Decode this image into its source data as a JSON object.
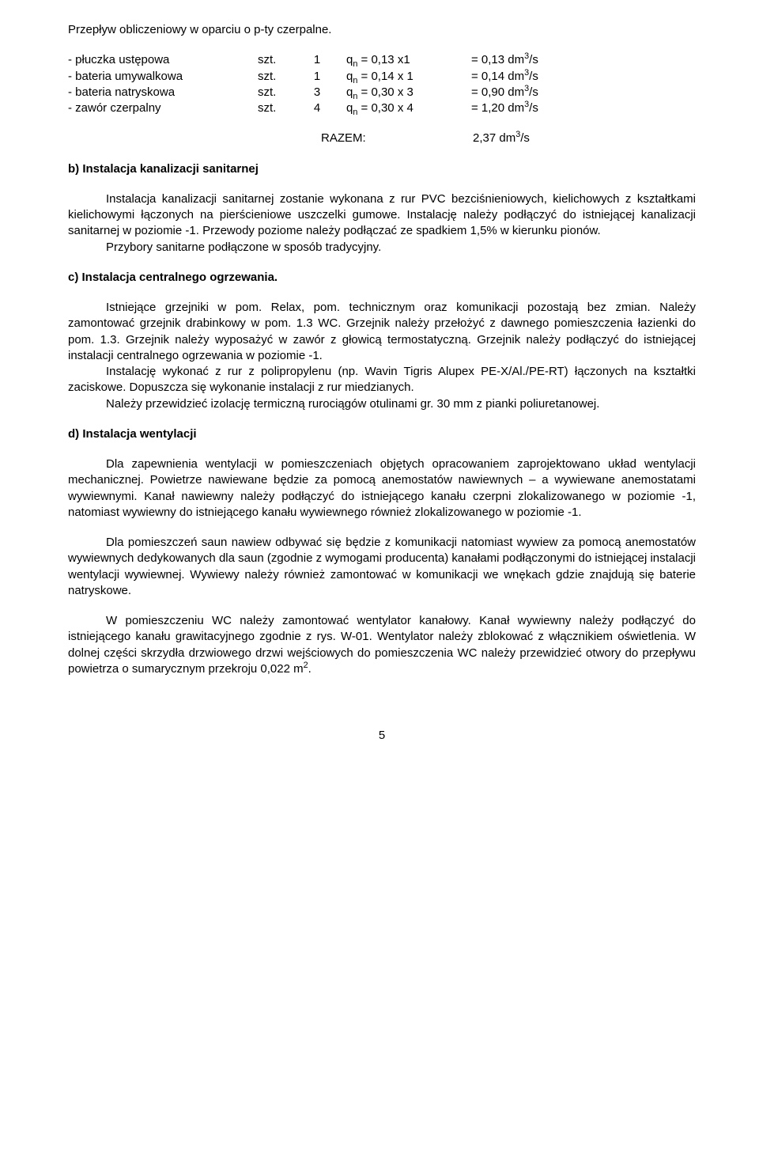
{
  "title": "Przepływ obliczeniowy w oparciu o p-ty czerpalne.",
  "flow": [
    {
      "name": "- płuczka ustępowa",
      "unit": "szt.",
      "qty": "1",
      "eq_pre": "q",
      "eq_post": " = 0,13 x1",
      "res_pre": "= 0,13 dm",
      "res_post": "/s"
    },
    {
      "name": "- bateria umywalkowa",
      "unit": "szt.",
      "qty": "1",
      "eq_pre": "q",
      "eq_post": " = 0,14 x 1",
      "res_pre": "= 0,14 dm",
      "res_post": "/s"
    },
    {
      "name": "- bateria natryskowa",
      "unit": "szt.",
      "qty": "3",
      "eq_pre": "q",
      "eq_post": " = 0,30 x 3",
      "res_pre": "= 0,90 dm",
      "res_post": "/s"
    },
    {
      "name": "- zawór czerpalny",
      "unit": "szt.",
      "qty": "4",
      "eq_pre": "q",
      "eq_post": " = 0,30 x 4",
      "res_pre": "= 1,20 dm",
      "res_post": "/s"
    }
  ],
  "razem_label": "RAZEM:",
  "razem_val_pre": "2,37 dm",
  "razem_val_post": "/s",
  "sec_b_title": "b) Instalacja kanalizacji sanitarnej",
  "sec_b_p1a": "Instalacja kanalizacji sanitarnej zostanie wykonana z rur PVC bezciśnieniowych, kielichowych z kształtkami kielichowymi łączonych na pierścieniowe uszczelki gumowe. Instalację należy podłączyć do istniejącej kanalizacji sanitarnej w poziomie -1. Przewody poziome należy podłączać ze spadkiem 1,5% w kierunku pionów.",
  "sec_b_p1b": "Przybory sanitarne podłączone w sposób tradycyjny.",
  "sec_c_title": "c) Instalacja centralnego  ogrzewania.",
  "sec_c_p1": "Istniejące grzejniki w pom. Relax, pom. technicznym oraz komunikacji pozostają bez zmian. Należy zamontować grzejnik drabinkowy w pom. 1.3 WC. Grzejnik należy przełożyć z dawnego pomieszczenia łazienki do pom. 1.3. Grzejnik należy wyposażyć w zawór z głowicą termostatyczną. Grzejnik należy podłączyć do istniejącej instalacji centralnego ogrzewania w poziomie -1.",
  "sec_c_p2": "Instalację wykonać z rur z polipropylenu (np. Wavin Tigris Alupex PE-X/Al./PE-RT) łączonych na kształtki zaciskowe. Dopuszcza się wykonanie instalacji z rur  miedzianych.",
  "sec_c_p3": "Należy przewidzieć izolację termiczną rurociągów otulinami gr. 30 mm z pianki poliuretanowej.",
  "sec_d_title": "d) Instalacja wentylacji",
  "sec_d_p1": "Dla zapewnienia wentylacji w pomieszczeniach objętych opracowaniem zaprojektowano układ wentylacji mechanicznej. Powietrze nawiewane będzie za pomocą anemostatów nawiewnych – a wywiewane anemostatami wywiewnymi. Kanał nawiewny należy podłączyć do istniejącego kanału czerpni zlokalizowanego w poziomie -1, natomiast wywiewny do istniejącego kanału wywiewnego również zlokalizowanego w poziomie -1.",
  "sec_d_p2": "Dla pomieszczeń saun nawiew odbywać się będzie z komunikacji natomiast wywiew za pomocą anemostatów wywiewnych dedykowanych dla saun (zgodnie z wymogami producenta) kanałami podłączonymi do istniejącej instalacji wentylacji wywiewnej. Wywiewy należy również zamontować w komunikacji we wnękach gdzie znajdują się baterie natryskowe.",
  "sec_d_p3_a": "W pomieszczeniu WC należy zamontować wentylator kanałowy. Kanał wywiewny należy podłączyć do istniejącego kanału grawitacyjnego zgodnie z rys. W-01. Wentylator należy zblokować z włącznikiem oświetlenia. W dolnej części skrzydła drzwiowego drzwi wejściowych do pomieszczenia WC należy przewidzieć otwory do przepływu powietrza o sumarycznym przekroju 0,022 m",
  "sec_d_p3_b": ".",
  "page_number": "5"
}
